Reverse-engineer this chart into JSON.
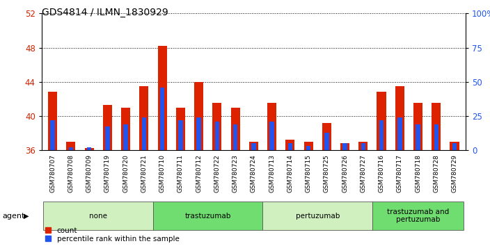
{
  "title": "GDS4814 / ILMN_1830929",
  "samples": [
    "GSM780707",
    "GSM780708",
    "GSM780709",
    "GSM780719",
    "GSM780720",
    "GSM780721",
    "GSM780710",
    "GSM780711",
    "GSM780712",
    "GSM780722",
    "GSM780723",
    "GSM780724",
    "GSM780713",
    "GSM780714",
    "GSM780715",
    "GSM780725",
    "GSM780726",
    "GSM780727",
    "GSM780716",
    "GSM780717",
    "GSM780718",
    "GSM780728",
    "GSM780729"
  ],
  "count_values": [
    42.8,
    37.0,
    36.2,
    41.3,
    41.0,
    43.5,
    48.2,
    41.0,
    44.0,
    41.5,
    41.0,
    37.0,
    41.5,
    37.2,
    37.0,
    39.2,
    36.8,
    37.0,
    42.8,
    43.5,
    41.5,
    41.5,
    37.0
  ],
  "percentile_values": [
    39.5,
    36.3,
    36.3,
    38.8,
    39.0,
    39.8,
    43.3,
    39.5,
    39.8,
    39.3,
    39.0,
    36.8,
    39.3,
    36.8,
    36.5,
    38.0,
    36.8,
    36.8,
    39.5,
    39.8,
    39.0,
    39.0,
    36.8
  ],
  "groups": [
    {
      "label": "none",
      "start": 0,
      "end": 6,
      "color": "#d0f0c0"
    },
    {
      "label": "trastuzumab",
      "start": 6,
      "end": 12,
      "color": "#70dd70"
    },
    {
      "label": "pertuzumab",
      "start": 12,
      "end": 18,
      "color": "#d0f0c0"
    },
    {
      "label": "trastuzumab and\npertuzumab",
      "start": 18,
      "end": 23,
      "color": "#70dd70"
    }
  ],
  "ymin": 36,
  "ymax": 52,
  "yticks_left": [
    36,
    40,
    44,
    48,
    52
  ],
  "yticks_right_pct": [
    0,
    25,
    50,
    75,
    100
  ],
  "bar_color": "#dd2200",
  "percentile_color": "#2255ee",
  "bar_width": 0.5,
  "pct_bar_width": 0.25,
  "legend_count_label": "count",
  "legend_percentile_label": "percentile rank within the sample",
  "agent_label": "agent"
}
